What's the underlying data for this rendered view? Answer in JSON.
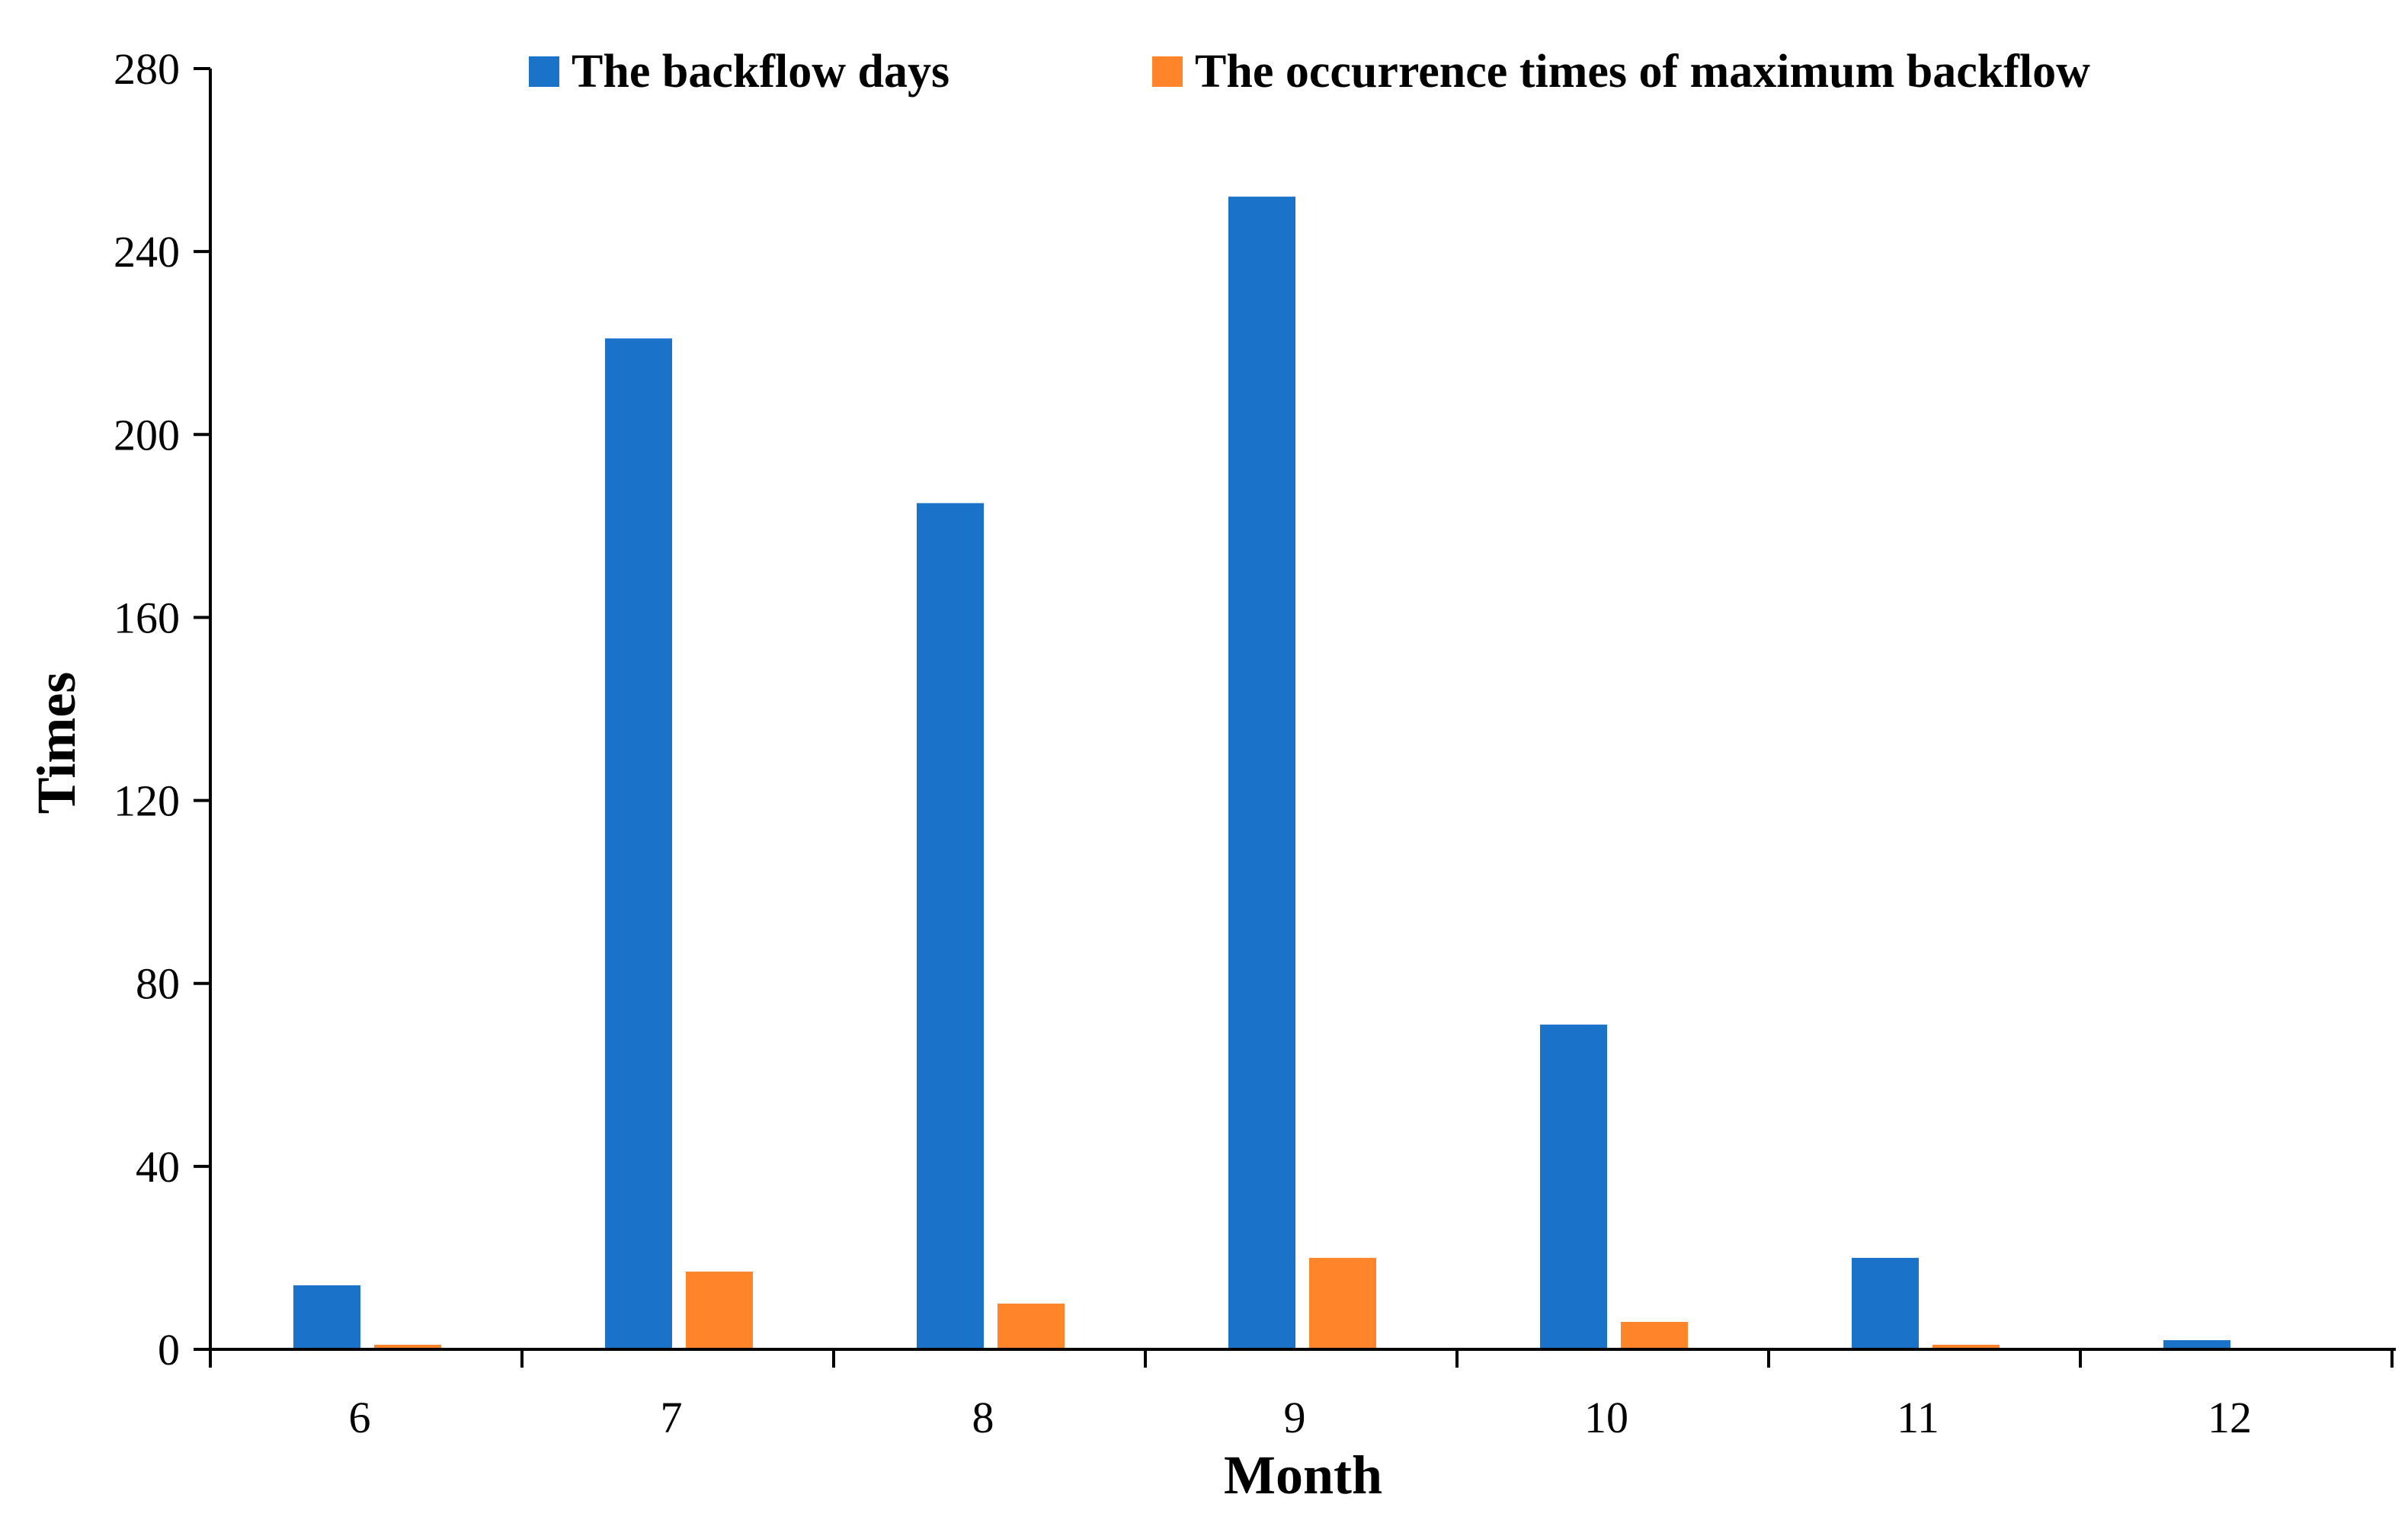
{
  "chart_data": {
    "type": "bar",
    "title": "",
    "xlabel": "Month",
    "ylabel": "Times",
    "categories": [
      "6",
      "7",
      "8",
      "9",
      "10",
      "11",
      "12"
    ],
    "series": [
      {
        "name": "The backflow days",
        "color": "#1a73c8",
        "values": [
          14,
          221,
          185,
          252,
          71,
          20,
          2
        ]
      },
      {
        "name": "The occurrence times of maximum backflow",
        "color": "#ff842a",
        "values": [
          1,
          17,
          10,
          20,
          6,
          1,
          0
        ]
      }
    ],
    "ylim": [
      0,
      280
    ],
    "yticks": [
      0,
      40,
      80,
      120,
      160,
      200,
      240,
      280
    ],
    "grid": false,
    "legend": "top"
  }
}
